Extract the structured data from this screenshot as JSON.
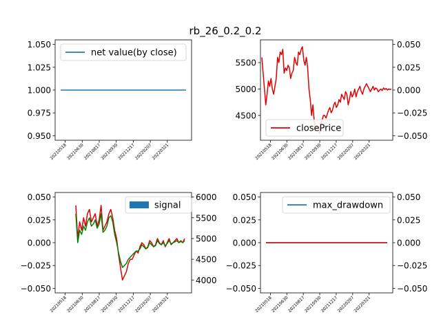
{
  "suptitle": "rb_26_0.2_0.2",
  "colors": {
    "blue": "#1f77b4",
    "red": "#e00000",
    "green": "#008000"
  },
  "xdates": [
    "20210518",
    "20210630",
    "20210817",
    "20210930",
    "20211217",
    "20220207",
    "20220321"
  ],
  "chart_data": [
    {
      "id": "net",
      "type": "line",
      "series": [
        {
          "name": "net value(by close)",
          "x": [
            0,
            221
          ],
          "y": [
            1.0,
            1.0
          ]
        }
      ],
      "ylim": [
        0.945,
        1.055
      ],
      "yticks": [
        "1.050",
        "1.025",
        "1.000",
        "0.975",
        "0.950"
      ],
      "xticks": [
        "20210518",
        "20210630",
        "20210817",
        "20210930",
        "20211217",
        "20220207",
        "20220321"
      ],
      "legend": "top-left"
    },
    {
      "id": "price",
      "type": "line",
      "series": [
        {
          "name": "closePrice",
          "x": [
            0,
            2,
            4,
            6,
            8,
            10,
            12,
            14,
            16,
            18,
            20,
            22,
            24,
            26,
            28,
            30,
            32,
            34,
            36,
            38,
            40,
            42,
            44,
            46,
            48,
            50,
            52,
            54,
            56,
            58,
            60,
            62,
            64,
            66,
            68,
            70,
            72,
            74,
            76,
            78,
            80,
            82,
            84,
            86,
            88,
            90,
            92,
            94,
            96,
            98,
            100,
            102,
            104,
            106,
            108,
            110,
            112,
            114,
            116,
            118,
            120,
            122,
            124,
            126,
            128,
            130,
            132,
            134,
            136,
            138,
            140,
            142,
            144,
            146,
            148,
            150,
            152,
            154,
            156,
            158,
            160,
            162,
            164,
            166,
            168,
            170,
            172,
            174,
            176,
            178,
            180,
            182,
            184,
            186,
            188,
            190,
            192,
            194,
            196,
            198
          ],
          "y": [
            5600,
            5300,
            5000,
            4700,
            4900,
            5150,
            5050,
            5200,
            5000,
            4900,
            5050,
            5200,
            5600,
            5500,
            5700,
            5650,
            5750,
            5300,
            5400,
            5350,
            5450,
            5400,
            5200,
            5300,
            5350,
            5600,
            5500,
            5450,
            5700,
            5650,
            5750,
            5800,
            5550,
            5450,
            5600,
            5400,
            5000,
            4800,
            4500,
            4700,
            4400,
            4200,
            4300,
            4250,
            4150,
            4350,
            4400,
            4500,
            4500,
            4450,
            4520,
            4600,
            4650,
            4550,
            4600,
            4700,
            4750,
            4650,
            4700,
            4800,
            4750,
            4900,
            4850,
            4800,
            4950,
            4900,
            4700,
            4800,
            4950,
            4850,
            4900,
            5000,
            4850,
            4950,
            5000,
            5050,
            4950,
            4900,
            5000,
            5050,
            5100,
            5050,
            5000,
            4950,
            5000,
            5050,
            4980,
            5020,
            5000,
            4950,
            4980,
            5000,
            4970,
            5020,
            4990,
            5010,
            4980,
            5000,
            4990,
            5000
          ]
        }
      ],
      "ylim_left": [
        4030,
        5930
      ],
      "yticks_left": [
        "5500",
        "5000",
        "4500"
      ],
      "ylim_right": [
        -0.055,
        0.055
      ],
      "yticks_right": [
        "0.050",
        "0.025",
        "0.000",
        "−0.025",
        "−0.050"
      ],
      "xticks": [
        "20210518",
        "20210630",
        "20210817",
        "20210930",
        "20211217",
        "20220207",
        "20220321"
      ],
      "legend": "bottom-left"
    },
    {
      "id": "signal",
      "type": "line",
      "series": [
        {
          "name": "signal",
          "color": "#1f77b4",
          "values": []
        },
        {
          "name": "",
          "color": "#e00000",
          "x": [
            0,
            3,
            6,
            9,
            12,
            15,
            18,
            21,
            24,
            27,
            30,
            33,
            36,
            39,
            42,
            45,
            48,
            51,
            54,
            57,
            60,
            63,
            66,
            69,
            72,
            75,
            78,
            81,
            84,
            87,
            90,
            93,
            96,
            99,
            102,
            105,
            108,
            111,
            114,
            117,
            120,
            123,
            126,
            129,
            132,
            135,
            138,
            141,
            144,
            147,
            150,
            153,
            156,
            159,
            162,
            165,
            168
          ],
          "y": [
            5800,
            5000,
            5400,
            5200,
            5500,
            5300,
            5600,
            5700,
            5400,
            5500,
            5600,
            5300,
            5450,
            5800,
            5200,
            5300,
            5400,
            5600,
            5700,
            5500,
            5200,
            5000,
            4600,
            4300,
            4000,
            4100,
            4200,
            4400,
            4500,
            4500,
            4600,
            4700,
            4650,
            4800,
            4900,
            4850,
            4750,
            4800,
            4950,
            4900,
            4800,
            4850,
            5000,
            4900,
            4850,
            4950,
            4800,
            4900,
            5000,
            4850,
            4900,
            4950,
            5000,
            4900,
            4950,
            4900,
            5000
          ]
        },
        {
          "name": "",
          "color": "#008000",
          "x": [
            0,
            3,
            6,
            9,
            12,
            15,
            18,
            21,
            24,
            27,
            30,
            33,
            36,
            39,
            42,
            45,
            48,
            51,
            54,
            57,
            60,
            63,
            66,
            69,
            72,
            75,
            78,
            81,
            84,
            87,
            90,
            93,
            96,
            99,
            102,
            105,
            108,
            111,
            114,
            117,
            120,
            123,
            126,
            129,
            132,
            135,
            138,
            141,
            144,
            147,
            150,
            153,
            156,
            159,
            162,
            165,
            168
          ],
          "y": [
            5600,
            4900,
            5200,
            5100,
            5300,
            5200,
            5400,
            5500,
            5300,
            5350,
            5450,
            5250,
            5350,
            5600,
            5150,
            5200,
            5300,
            5500,
            5550,
            5400,
            5100,
            4900,
            4650,
            4450,
            4300,
            4350,
            4400,
            4500,
            4550,
            4600,
            4650,
            4700,
            4700,
            4750,
            4850,
            4800,
            4750,
            4780,
            4900,
            4850,
            4800,
            4830,
            4950,
            4880,
            4850,
            4900,
            4820,
            4880,
            4950,
            4870,
            4900,
            4920,
            4950,
            4900,
            4930,
            4900,
            4950
          ]
        }
      ],
      "ylim_left": [
        -0.055,
        0.055
      ],
      "yticks_left": [
        "0.050",
        "0.025",
        "0.000",
        "−0.025",
        "−0.050"
      ],
      "ylim_right": [
        3690,
        6110
      ],
      "yticks_right": [
        "6000",
        "5500",
        "5000",
        "4500",
        "4000"
      ],
      "xticks": [
        "20210518",
        "20210630",
        "20210817",
        "20210930",
        "20211217",
        "20220207",
        "20220321"
      ],
      "legend": "top-right"
    },
    {
      "id": "drawdown",
      "type": "line",
      "series": [
        {
          "name": "max_drawdown",
          "color": "#1f77b4",
          "x": [
            0,
            221
          ],
          "y": [
            0,
            0
          ]
        },
        {
          "name": "",
          "color": "#e00000",
          "x": [
            0,
            221
          ],
          "y": [
            0,
            0
          ]
        }
      ],
      "ylim_left": [
        -0.055,
        0.055
      ],
      "yticks_left": [
        "0.050",
        "0.025",
        "0.000",
        "−0.025",
        "−0.050"
      ],
      "ylim_right": [
        -0.055,
        0.055
      ],
      "yticks_right": [
        "0.050",
        "0.025",
        "0.000",
        "−0.025",
        "−0.050"
      ],
      "xticks": [
        "20210518",
        "20210630",
        "20210817",
        "20210930",
        "20211217",
        "20220207",
        "20220321"
      ],
      "legend": "top-right"
    }
  ]
}
